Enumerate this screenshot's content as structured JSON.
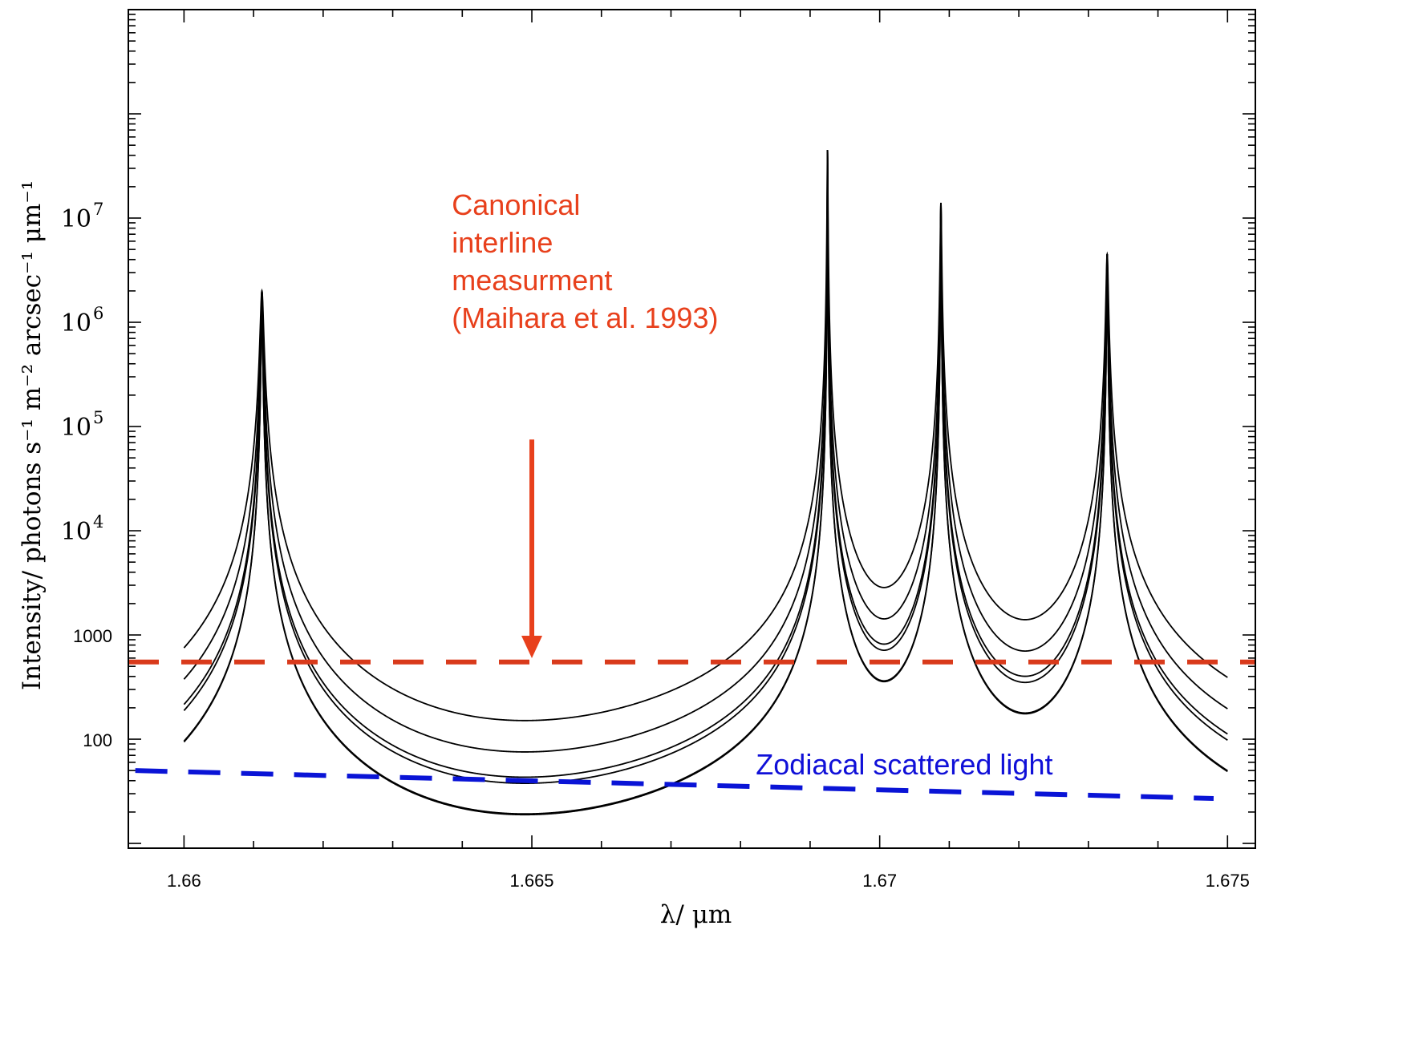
{
  "chart_data": {
    "type": "line",
    "xlabel": "λ/ μm",
    "ylabel": "Intensity/ photons s⁻¹ m⁻² arcsec⁻¹ μm⁻¹",
    "x_scale": "linear",
    "y_scale": "log",
    "xlim": [
      1.6592,
      1.6754
    ],
    "ylim": [
      9,
      1000000000
    ],
    "x_ticks": [
      {
        "value": 1.66,
        "label": "1.66"
      },
      {
        "value": 1.665,
        "label": "1.665"
      },
      {
        "value": 1.67,
        "label": "1.67"
      },
      {
        "value": 1.675,
        "label": "1.675"
      }
    ],
    "y_ticks": [
      {
        "value": 100,
        "label": "100",
        "style": "plain"
      },
      {
        "value": 1000,
        "label": "1000",
        "style": "plain"
      },
      {
        "value": 10000,
        "base": "10",
        "exp": "4",
        "style": "power"
      },
      {
        "value": 100000,
        "base": "10",
        "exp": "5",
        "style": "power"
      },
      {
        "value": 1000000,
        "base": "10",
        "exp": "6",
        "style": "power"
      },
      {
        "value": 10000000,
        "base": "10",
        "exp": "7",
        "style": "power"
      }
    ],
    "x_minor_step": 0.001,
    "grid": false,
    "lines": {
      "peaks": [
        {
          "x": 1.66112,
          "peak": 2000000
        },
        {
          "x": 1.66925,
          "peak": 45000000
        },
        {
          "x": 1.67088,
          "peak": 14000000
        },
        {
          "x": 1.67327,
          "peak": 4500000
        }
      ],
      "curve_x_range": [
        1.66,
        1.675
      ],
      "series": [
        {
          "interline_min": 200,
          "color": "#000000"
        },
        {
          "interline_min": 100,
          "color": "#000000"
        },
        {
          "interline_min": 50,
          "color": "#000000"
        },
        {
          "interline_min": 25,
          "color": "#000000"
        }
      ],
      "extra_series_dip_values": [
        800,
        1800
      ]
    },
    "reference_lines": [
      {
        "name": "canonical-interline",
        "type": "horizontal",
        "y": 550,
        "x_range": [
          1.6592,
          1.6754
        ],
        "color": "#d93a1b",
        "style": "dashed"
      },
      {
        "name": "zodiacal-scattered-light",
        "type": "sloped",
        "points": [
          [
            1.6593,
            50
          ],
          [
            1.6748,
            27
          ]
        ],
        "color": "#0a14d6",
        "style": "dashed"
      }
    ],
    "annotations": [
      {
        "name": "canonical-label",
        "lines": [
          "Canonical",
          "interline",
          "measurment",
          "(Maihara et al. 1993)"
        ],
        "color": "#e8401c"
      },
      {
        "name": "zodiacal-label",
        "text": "Zodiacal scattered light",
        "color": "#1010d8"
      }
    ],
    "arrow": {
      "x": 1.665,
      "y_from": 75000,
      "y_to": 620,
      "color": "#e8401c"
    }
  }
}
